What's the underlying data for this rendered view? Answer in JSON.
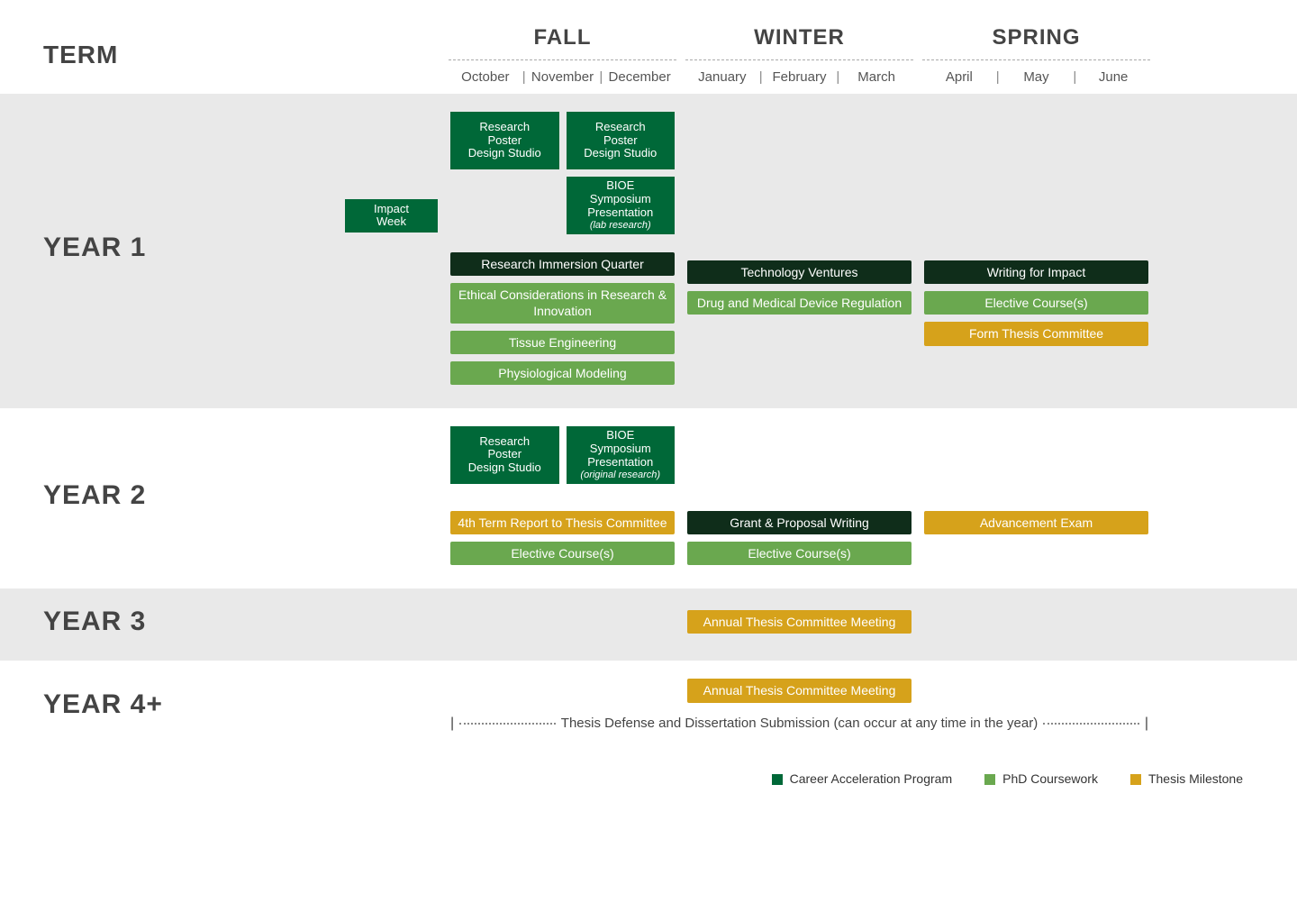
{
  "colors": {
    "career": "#006838",
    "coursework": "#6aa84f",
    "milestone": "#d6a21b",
    "darkbar": "#0f2d1a",
    "bg_alt": "#e9e9e9",
    "text": "#444444"
  },
  "header": {
    "term_label": "TERM",
    "terms": [
      {
        "name": "FALL",
        "months": [
          "October",
          "November",
          "December"
        ]
      },
      {
        "name": "WINTER",
        "months": [
          "January",
          "February",
          "March"
        ]
      },
      {
        "name": "SPRING",
        "months": [
          "April",
          "May",
          "June"
        ]
      }
    ]
  },
  "legend": [
    {
      "label": "Career Acceleration Program",
      "color_key": "career"
    },
    {
      "label": "PhD Coursework",
      "color_key": "coursework"
    },
    {
      "label": "Thesis Milestone",
      "color_key": "milestone"
    }
  ],
  "years": {
    "y1": {
      "label": "YEAR 1",
      "pre_box": {
        "text": "Impact\nWeek",
        "color_key": "career"
      },
      "fall_boxes_row1": [
        {
          "text": "Research\nPoster\nDesign Studio",
          "color_key": "career"
        },
        {
          "text": "Research\nPoster\nDesign Studio",
          "color_key": "career"
        }
      ],
      "fall_boxes_row2": [
        {
          "text": "",
          "empty": true
        },
        {
          "text": "BIOE\nSymposium\nPresentation",
          "sub": "(lab research)",
          "color_key": "career"
        }
      ],
      "bars": {
        "fall": [
          {
            "text": "Research Immersion Quarter",
            "color_key": "darkbar"
          },
          {
            "text": "Ethical Considerations in Research & Innovation",
            "color_key": "coursework"
          },
          {
            "text": "Tissue Engineering",
            "color_key": "coursework"
          },
          {
            "text": "Physiological Modeling",
            "color_key": "coursework"
          }
        ],
        "winter": [
          {
            "text": "Technology Ventures",
            "color_key": "darkbar"
          },
          {
            "text": "Drug and Medical Device Regulation",
            "color_key": "coursework"
          }
        ],
        "spring": [
          {
            "text": "Writing for Impact",
            "color_key": "darkbar"
          },
          {
            "text": "Elective Course(s)",
            "color_key": "coursework"
          },
          {
            "text": "Form Thesis Committee",
            "color_key": "milestone"
          }
        ]
      }
    },
    "y2": {
      "label": "YEAR 2",
      "fall_boxes_row1": [
        {
          "text": "Research\nPoster\nDesign Studio",
          "color_key": "career"
        },
        {
          "text": "BIOE\nSymposium\nPresentation",
          "sub": "(original research)",
          "color_key": "career"
        }
      ],
      "bars": {
        "fall": [
          {
            "text": "4th Term Report to Thesis Committee",
            "color_key": "milestone"
          },
          {
            "text": "Elective Course(s)",
            "color_key": "coursework"
          }
        ],
        "winter": [
          {
            "text": "Grant & Proposal Writing",
            "color_key": "darkbar"
          },
          {
            "text": "Elective Course(s)",
            "color_key": "coursework"
          }
        ],
        "spring": [
          {
            "text": "Advancement Exam",
            "color_key": "milestone"
          }
        ]
      }
    },
    "y3": {
      "label": "YEAR 3",
      "bars": {
        "winter": [
          {
            "text": "Annual Thesis Committee Meeting",
            "color_key": "milestone"
          }
        ]
      }
    },
    "y4": {
      "label": "YEAR 4+",
      "bars": {
        "winter": [
          {
            "text": "Annual Thesis Committee Meeting",
            "color_key": "milestone"
          }
        ]
      },
      "floating": "Thesis Defense and Dissertation Submission (can occur at any time in the year)"
    }
  }
}
